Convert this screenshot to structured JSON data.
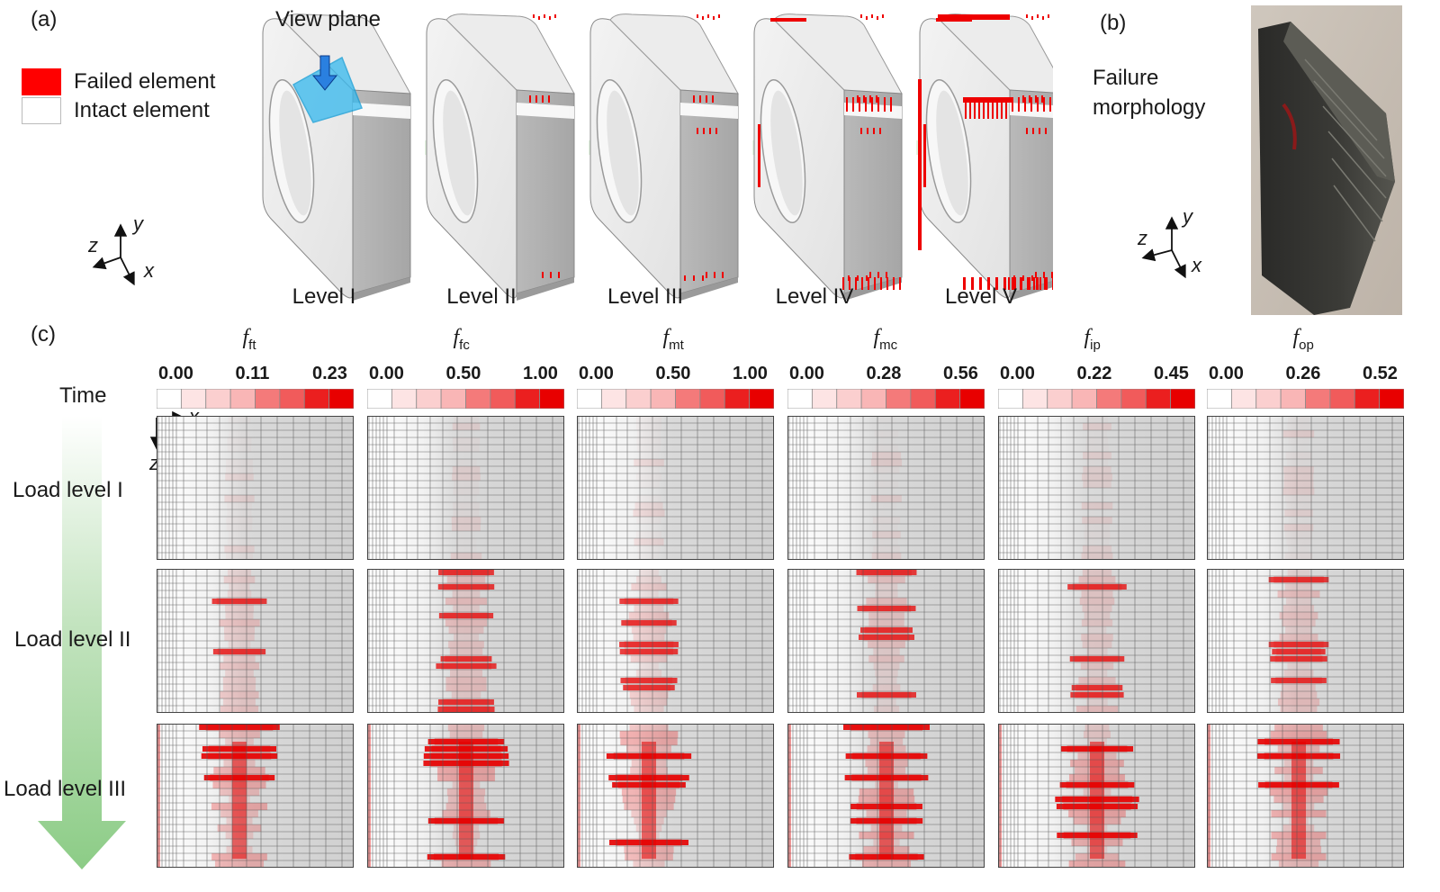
{
  "panel_a": {
    "label": "(a)",
    "view_plane_label": "View plane",
    "legend": {
      "failed": "Failed element",
      "intact": "Intact element",
      "failed_color": "#ff0000",
      "intact_color": "#ffffff"
    },
    "axes": {
      "y": "y",
      "z": "z",
      "x": "x"
    },
    "levels": [
      "Level I",
      "Level II",
      "Level III",
      "Level IV",
      "Level V"
    ]
  },
  "panel_b": {
    "label": "(b)",
    "title_line1": "Failure",
    "title_line2": "morphology",
    "axes": {
      "y": "y",
      "z": "z",
      "x": "x"
    }
  },
  "panel_c": {
    "label": "(c)",
    "time_label": "Time",
    "axis_x": "x",
    "axis_z": "z",
    "row_labels": [
      "Load level I",
      "Load level II",
      "Load level III"
    ],
    "criteria": [
      {
        "italic": "f",
        "sub": "ft",
        "ticks": [
          "0.00",
          "0.11",
          "0.23"
        ]
      },
      {
        "italic": "f",
        "sub": "fc",
        "ticks": [
          "0.00",
          "0.50",
          "1.00"
        ]
      },
      {
        "italic": "f",
        "sub": "mt",
        "ticks": [
          "0.00",
          "0.50",
          "1.00"
        ]
      },
      {
        "italic": "f",
        "sub": "mc",
        "ticks": [
          "0.00",
          "0.28",
          "0.56"
        ]
      },
      {
        "italic": "f",
        "sub": "ip",
        "ticks": [
          "0.00",
          "0.22",
          "0.45"
        ]
      },
      {
        "italic": "f",
        "sub": "op",
        "ticks": [
          "0.00",
          "0.26",
          "0.52"
        ]
      }
    ],
    "colors": {
      "accent": "#e8121b",
      "grid": "#4d4d4d",
      "cell_bg": "#dcdcdc",
      "arrow": "#a5d6a0"
    }
  }
}
